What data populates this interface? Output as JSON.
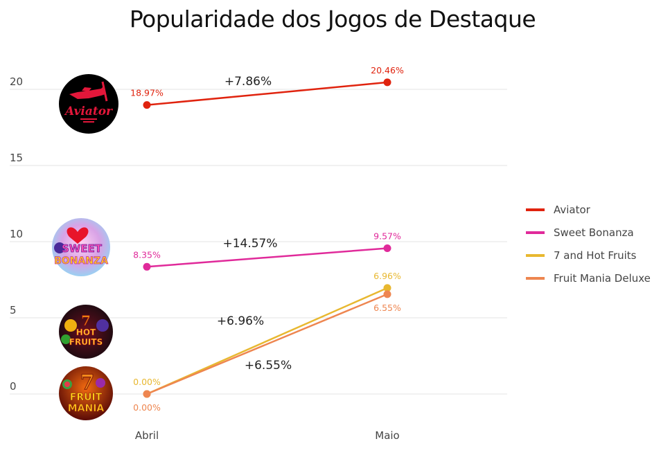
{
  "chart_data": {
    "type": "line",
    "title": "Popularidade dos Jogos de Destaque",
    "xlabel": "",
    "ylabel": "",
    "x": [
      "Abril",
      "Maio"
    ],
    "ylim": [
      0,
      20
    ],
    "yticks": [
      0,
      5,
      10,
      15,
      20
    ],
    "grid": true,
    "legend_position": "right",
    "series": [
      {
        "name": "Aviator",
        "color": "#e0230e",
        "values": [
          18.97,
          20.46
        ],
        "labels": [
          "18.97%",
          "20.46%"
        ],
        "change": "+7.86%",
        "icon": "aviator-logo-icon"
      },
      {
        "name": "Sweet Bonanza",
        "color": "#e02a9a",
        "values": [
          8.35,
          9.57
        ],
        "labels": [
          "8.35%",
          "9.57%"
        ],
        "change": "+14.57%",
        "icon": "sweet-bonanza-logo-icon"
      },
      {
        "name": "7 and Hot Fruits",
        "color": "#e8b830",
        "values": [
          0.0,
          6.96
        ],
        "labels": [
          "0.00%",
          "6.96%"
        ],
        "change": "+6.96%",
        "icon": "hot-fruits-logo-icon"
      },
      {
        "name": "Fruit Mania Deluxe",
        "color": "#ee8650",
        "values": [
          0.0,
          6.55
        ],
        "labels": [
          "0.00%",
          "6.55%"
        ],
        "change": "+6.55%",
        "icon": "fruit-mania-logo-icon"
      }
    ]
  }
}
